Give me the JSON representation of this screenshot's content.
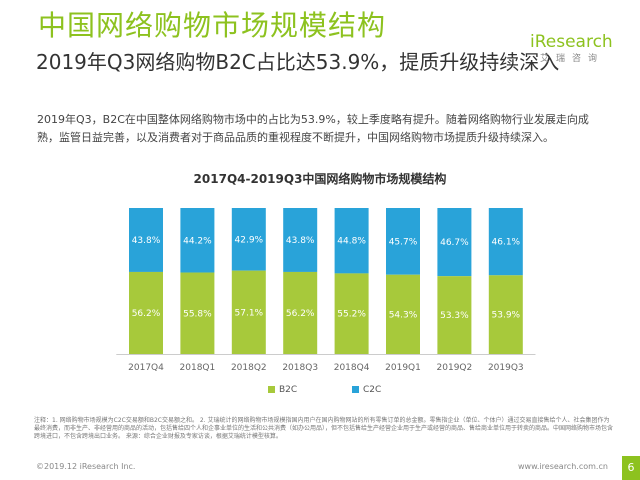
{
  "header": {
    "title": "中国网络购物市场规模结构",
    "subtitle": "2019年Q3网络购物B2C占比达53.9%，提质升级持续深入"
  },
  "logo": {
    "brand": "iResearch",
    "brand_cn": "艾瑞咨询",
    "color": "#8dc21f"
  },
  "body_text": "2019年Q3，B2C在中国整体网络购物市场中的占比为53.9%，较上季度略有提升。随着网络购物行业发展走向成熟，监管日益完善，以及消费者对于商品品质的重视程度不断提升，中国网络购物市场提质升级持续深入。",
  "chart_data": {
    "type": "bar",
    "stacked": true,
    "percent": true,
    "title": "2017Q4-2019Q3中国网络购物市场规模结构",
    "categories": [
      "2017Q4",
      "2018Q1",
      "2018Q2",
      "2018Q3",
      "2018Q4",
      "2019Q1",
      "2019Q2",
      "2019Q3"
    ],
    "series": [
      {
        "name": "B2C",
        "color": "#a7c93b",
        "values": [
          56.2,
          55.8,
          57.1,
          56.2,
          55.2,
          54.3,
          53.3,
          53.9
        ],
        "labels": [
          "56.2%",
          "55.8%",
          "57.1%",
          "56.2%",
          "55.2%",
          "54.3%",
          "53.3%",
          "53.9%"
        ]
      },
      {
        "name": "C2C",
        "color": "#29a3d9",
        "values": [
          43.8,
          44.2,
          42.9,
          43.8,
          44.8,
          45.7,
          46.7,
          46.1
        ],
        "labels": [
          "43.8%",
          "44.2%",
          "42.9%",
          "43.8%",
          "44.8%",
          "45.7%",
          "46.7%",
          "46.1%"
        ]
      }
    ],
    "ylim": [
      0,
      100
    ],
    "grid": false,
    "legend": "bottom",
    "xlabel": "",
    "ylabel": ""
  },
  "footer": {
    "note": "注释：1. 网络购物市场规模为C2C交易额和B2C交易额之和。 2. 艾瑞统计的网络购物市场规模指国内用户在国内购物网站的所有零售订单的总金额。零售指企业（单位、个体户）通过交易直接售给个人、社会集团作为最终消费，而非生产、非经营用的商品的活动，包括售给四个人和企事业单位的生活和公共消费（如办公用品），但不包括售给生产经营企业用于生产或经营的商品、售给商业单位用于转卖的商品。中国网络购物市场包含跨境进口，不包含跨境出口业务。 来源：综合企业财报及专家访谈，根据艾瑞统计模型核算。",
    "copyright": "©2019.12 iResearch Inc.",
    "url": "www.iresearch.com.cn",
    "page_number": "6"
  }
}
